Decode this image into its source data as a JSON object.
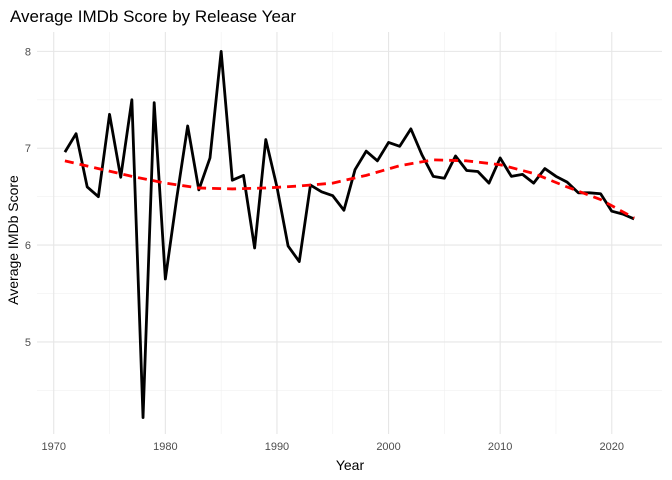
{
  "chart_data": {
    "type": "line",
    "title": "Average IMDb Score by Release Year",
    "xlabel": "Year",
    "ylabel": "Average IMDb Score",
    "xlim": [
      1968.5,
      2024.5
    ],
    "ylim": [
      4.05,
      8.2
    ],
    "x_ticks": [
      1970,
      1980,
      1990,
      2000,
      2010,
      2020
    ],
    "x_tick_labels": [
      "1970",
      "1980",
      "1990",
      "2000",
      "2010",
      "2020"
    ],
    "y_ticks": [
      5,
      6,
      7,
      8
    ],
    "y_tick_labels": [
      "5",
      "6",
      "7",
      "8"
    ],
    "grid": true,
    "legend": "none",
    "series": [
      {
        "style": "solid",
        "color": "#000000",
        "x": [
          1971,
          1972,
          1973,
          1974,
          1975,
          1976,
          1977,
          1978,
          1979,
          1980,
          1981,
          1982,
          1983,
          1984,
          1985,
          1986,
          1987,
          1988,
          1989,
          1990,
          1991,
          1992,
          1993,
          1994,
          1995,
          1996,
          1997,
          1998,
          1999,
          2000,
          2001,
          2002,
          2003,
          2004,
          2005,
          2006,
          2007,
          2008,
          2009,
          2010,
          2011,
          2012,
          2013,
          2014,
          2015,
          2016,
          2017,
          2018,
          2019,
          2020,
          2021,
          2022
        ],
        "y": [
          6.96,
          7.15,
          6.6,
          6.5,
          7.35,
          6.7,
          7.5,
          4.22,
          7.47,
          5.65,
          6.47,
          7.23,
          6.57,
          6.9,
          8.0,
          6.67,
          6.72,
          5.97,
          7.09,
          6.6,
          5.99,
          5.83,
          6.62,
          6.55,
          6.51,
          6.36,
          6.78,
          6.97,
          6.87,
          7.06,
          7.02,
          7.2,
          6.93,
          6.71,
          6.69,
          6.92,
          6.77,
          6.76,
          6.64,
          6.9,
          6.71,
          6.73,
          6.64,
          6.79,
          6.71,
          6.65,
          6.54,
          6.54,
          6.53,
          6.35,
          6.32,
          6.27
        ]
      },
      {
        "style": "dashed",
        "color": "#ff0000",
        "x": [
          1971,
          1974,
          1977,
          1980,
          1983,
          1986,
          1989,
          1992,
          1995,
          1998,
          2001,
          2004,
          2007,
          2010,
          2013,
          2016,
          2019,
          2022
        ],
        "y": [
          6.87,
          6.79,
          6.71,
          6.64,
          6.59,
          6.58,
          6.59,
          6.61,
          6.64,
          6.72,
          6.82,
          6.88,
          6.87,
          6.83,
          6.74,
          6.6,
          6.47,
          6.28
        ]
      }
    ]
  }
}
